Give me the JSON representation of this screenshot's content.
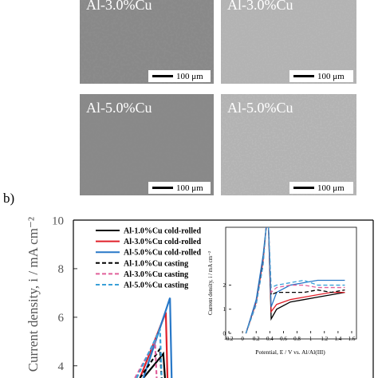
{
  "panels": [
    {
      "label": "Al-3.0%Cu",
      "scale_bar": "100 μm"
    },
    {
      "label": "Al-3.0%Cu",
      "scale_bar": "100 μm"
    },
    {
      "label": "Al-5.0%Cu",
      "scale_bar": "100 μm"
    },
    {
      "label": "Al-5.0%Cu",
      "scale_bar": "100 μm"
    }
  ],
  "figure_label": "b)",
  "chart_data": [
    {
      "type": "line",
      "ylabel": "Current density, i / mA cm⁻²",
      "xlim": [
        -0.2,
        1.6
      ],
      "ylim": [
        3.5,
        10
      ],
      "yticks": [
        4,
        6,
        8,
        10
      ],
      "series": [
        {
          "name": "Al-1.0%Cu cold-rolled",
          "color": "#000000",
          "style": "solid",
          "x": [
            0.22,
            0.34,
            0.35
          ],
          "values": [
            3.5,
            4.5,
            3.5
          ]
        },
        {
          "name": "Al-3.0%Cu cold-rolled",
          "color": "#e0202a",
          "style": "solid",
          "x": [
            0.2,
            0.355,
            0.365
          ],
          "values": [
            3.5,
            6.2,
            3.5
          ]
        },
        {
          "name": "Al-5.0%Cu cold-rolled",
          "color": "#2878c8",
          "style": "solid",
          "x": [
            0.22,
            0.38,
            0.39
          ],
          "values": [
            3.5,
            6.8,
            3.5
          ]
        },
        {
          "name": "Al-1.0%Cu casting",
          "color": "#000000",
          "style": "dashed",
          "x": [
            0.2,
            0.32,
            0.33
          ],
          "values": [
            3.5,
            4.7,
            3.5
          ]
        },
        {
          "name": "Al-3.0%Cu casting",
          "color": "#e0609a",
          "style": "dashed",
          "x": [
            0.17,
            0.29,
            0.3
          ],
          "values": [
            3.5,
            5.0,
            3.5
          ]
        },
        {
          "name": "Al-5.0%Cu casting",
          "color": "#3aa0d8",
          "style": "dashed",
          "x": [
            0.18,
            0.32,
            0.33
          ],
          "values": [
            3.5,
            5.5,
            3.5
          ]
        }
      ]
    },
    {
      "type": "line",
      "xlabel": "Potential, E / V vs. Al/Al(III)",
      "ylabel": "Current density, i / mA cm⁻²",
      "xlim": [
        -0.2,
        1.6
      ],
      "ylim": [
        0,
        4.4
      ],
      "xticks": [
        -0.2,
        0,
        0.2,
        0.4,
        0.6,
        0.8,
        1,
        1.2,
        1.4,
        1.6
      ],
      "yticks": [
        0,
        1,
        2
      ],
      "x": [
        0.05,
        0.2,
        0.3,
        0.35,
        0.38,
        0.42,
        0.5,
        0.7,
        0.9,
        1.1,
        1.3,
        1.5
      ],
      "series": [
        {
          "color": "#000000",
          "style": "solid",
          "values": [
            0,
            1.3,
            3.0,
            4.5,
            4.5,
            0.6,
            1.0,
            1.3,
            1.4,
            1.5,
            1.6,
            1.7
          ]
        },
        {
          "color": "#e0202a",
          "style": "solid",
          "values": [
            0,
            1.3,
            3.0,
            4.5,
            4.5,
            0.9,
            1.2,
            1.4,
            1.5,
            1.6,
            1.7,
            1.7
          ]
        },
        {
          "color": "#2878c8",
          "style": "solid",
          "values": [
            0,
            1.4,
            3.2,
            4.5,
            4.5,
            1.1,
            1.7,
            2.0,
            2.1,
            2.2,
            2.2,
            2.2
          ]
        },
        {
          "color": "#000000",
          "style": "dashed",
          "values": [
            0,
            1.2,
            2.9,
            4.5,
            4.5,
            1.6,
            1.7,
            1.7,
            1.7,
            1.8,
            1.7,
            1.8
          ]
        },
        {
          "color": "#e0609a",
          "style": "dashed",
          "values": [
            0,
            1.2,
            2.8,
            4.5,
            4.5,
            1.7,
            1.9,
            2.0,
            2.0,
            1.9,
            1.9,
            1.9
          ]
        },
        {
          "color": "#3aa0d8",
          "style": "dashed",
          "values": [
            0,
            1.2,
            2.8,
            4.5,
            4.5,
            1.9,
            2.0,
            2.1,
            2.2,
            2.0,
            2.0,
            2.0
          ]
        }
      ]
    }
  ]
}
